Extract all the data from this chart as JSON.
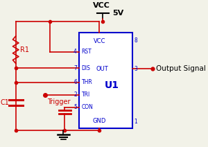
{
  "bg_color": "#f2f2e8",
  "wire_color": "#cc0000",
  "ic_color": "#0000cc",
  "vcc_label": "VCC",
  "vv_label": "5V",
  "output_label": "Output Signal",
  "trigger_label": "Trigger",
  "r1_label": "R1",
  "c1_label": "C1",
  "u1_label": "U1",
  "pins_left": [
    "RST",
    "DIS",
    "THR",
    "TRI",
    "CON"
  ],
  "pins_right_top": "VCC",
  "pins_right_mid": "OUT",
  "pins_right_bot": "GND",
  "pin_numbers_left": [
    "4",
    "7",
    "6",
    "2",
    "5"
  ],
  "pin_numbers_right": [
    "8",
    "3",
    "1"
  ],
  "figw": 3.0,
  "figh": 2.12,
  "dpi": 100
}
